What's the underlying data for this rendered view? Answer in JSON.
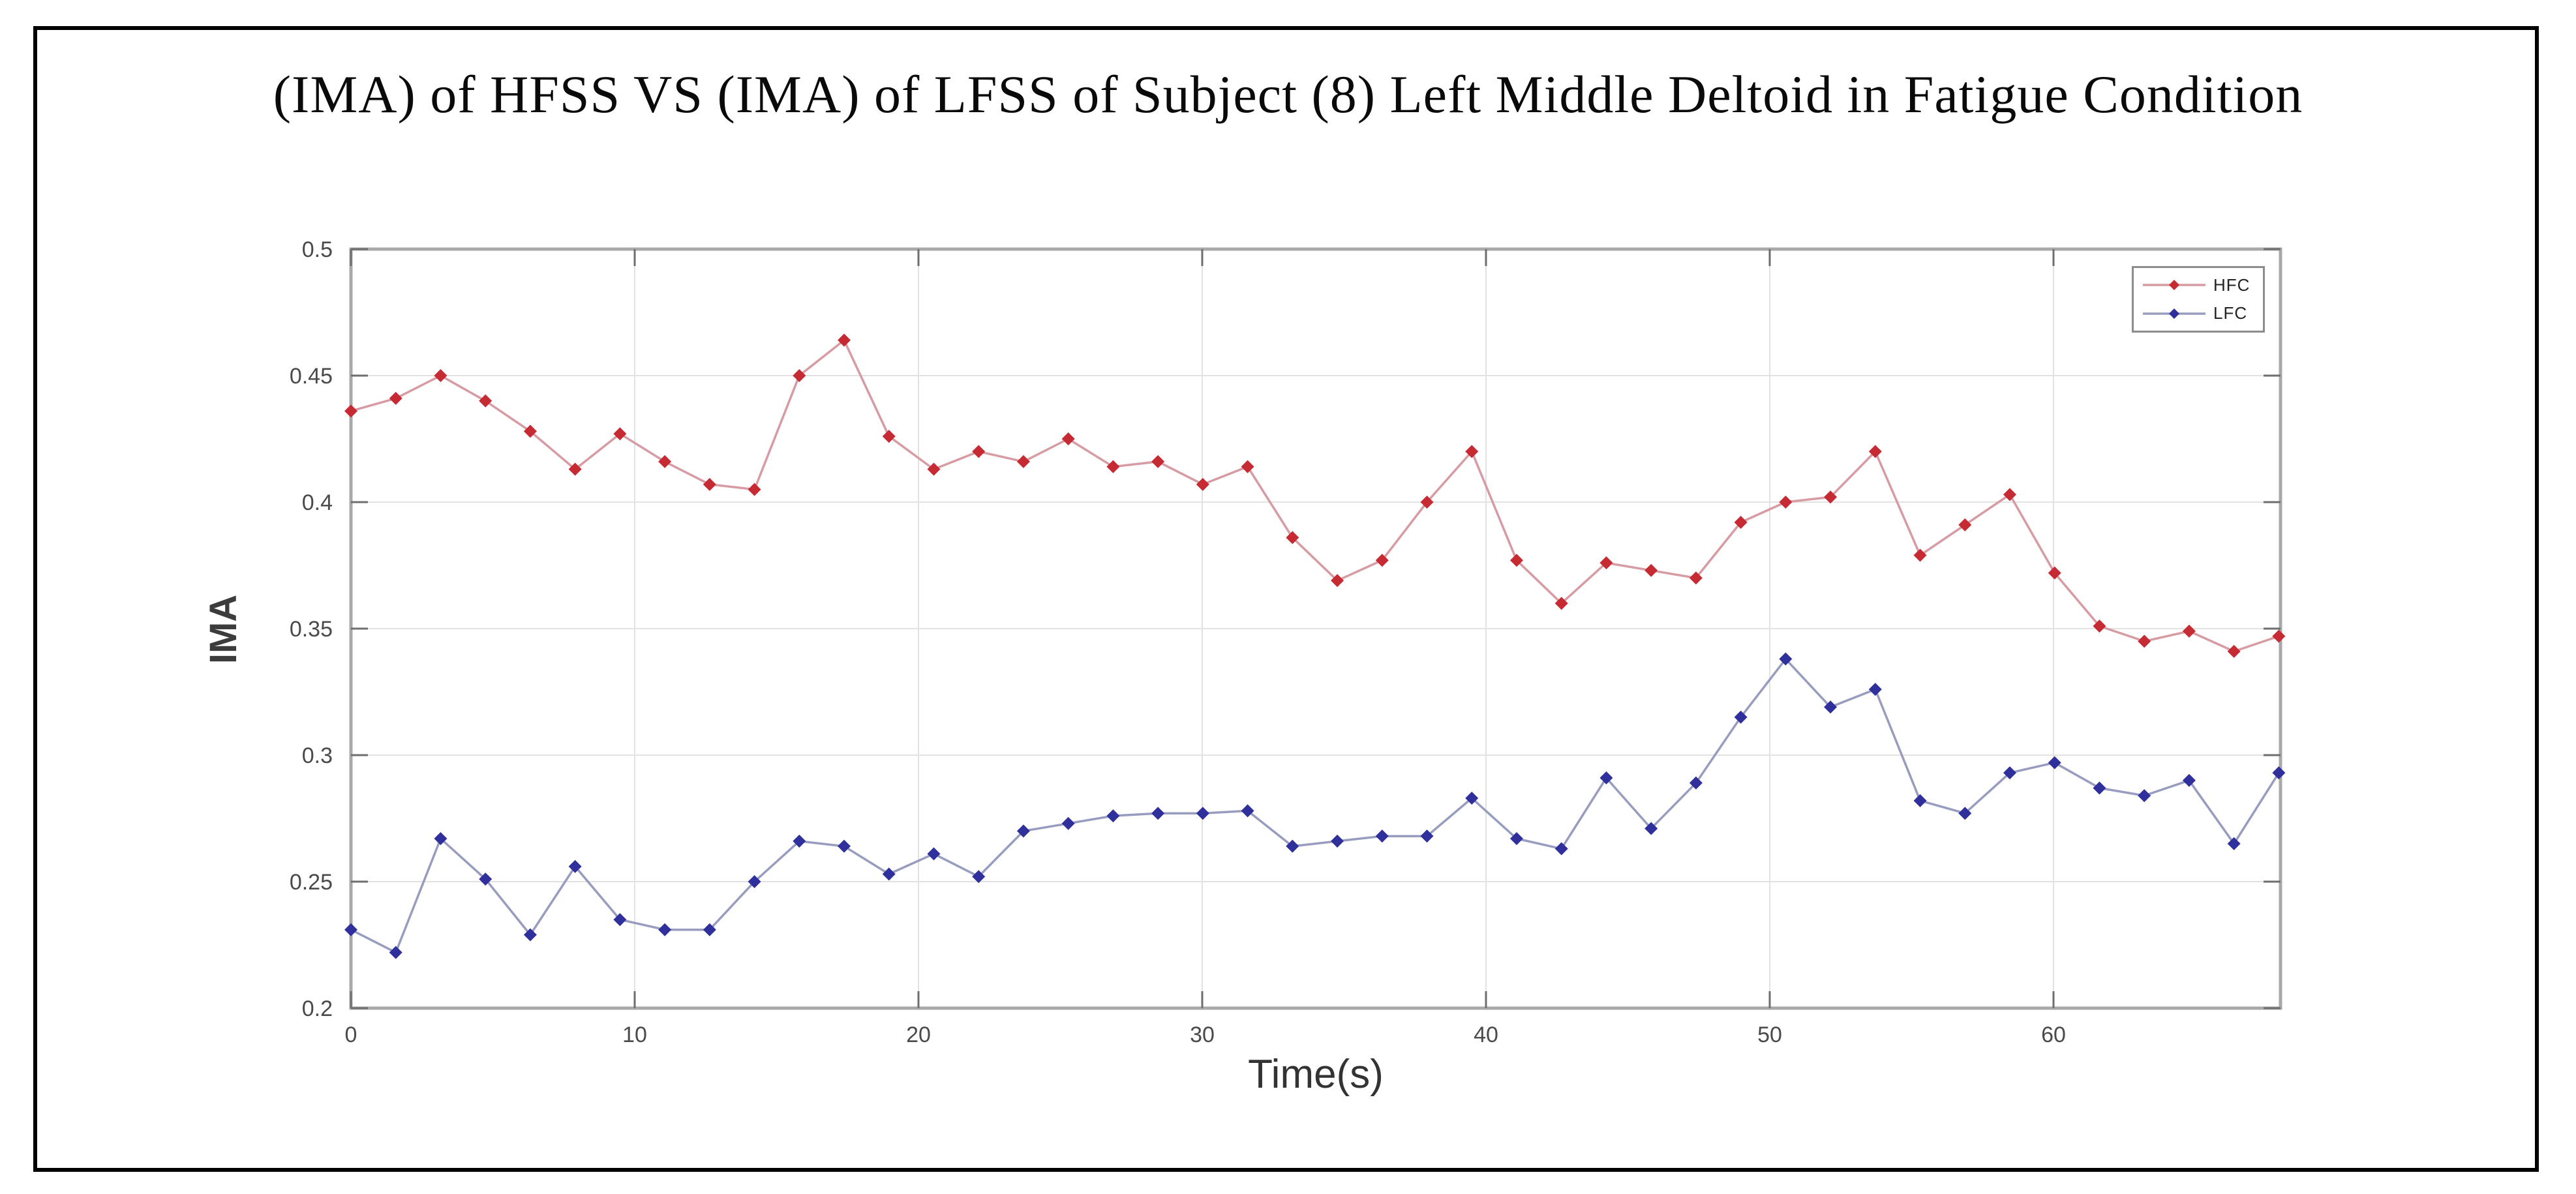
{
  "figure": {
    "title": "(IMA) of HFSS VS (IMA) of LFSS of Subject (8) Left Middle Deltoid in Fatigue Condition"
  },
  "chart_data": {
    "type": "line",
    "title": "(IMA) of HFSS VS (IMA) of LFSS of Subject (8) Left Middle Deltoid in Fatigue Condition",
    "xlabel": "Time(s)",
    "ylabel": "IMA",
    "xlim": [
      0,
      68
    ],
    "ylim": [
      0.2,
      0.5
    ],
    "grid": true,
    "legend_position": "top-right",
    "x_ticks": [
      0,
      10,
      20,
      30,
      40,
      50,
      60
    ],
    "x_tick_labels": [
      "0",
      "10",
      "20",
      "30",
      "40",
      "50",
      "60"
    ],
    "y_ticks": [
      0.2,
      0.25,
      0.3,
      0.35,
      0.4,
      0.45,
      0.5
    ],
    "y_tick_labels": [
      "0.2",
      "0.25",
      "0.3",
      "0.35",
      "0.4",
      "0.45",
      "0.5"
    ],
    "x": [
      0,
      1.58,
      3.16,
      4.74,
      6.32,
      7.9,
      9.48,
      11.06,
      12.64,
      14.22,
      15.8,
      17.38,
      18.96,
      20.54,
      22.12,
      23.7,
      25.28,
      26.86,
      28.44,
      30.02,
      31.6,
      33.18,
      34.76,
      36.34,
      37.92,
      39.5,
      41.08,
      42.66,
      44.24,
      45.82,
      47.4,
      48.98,
      50.56,
      52.14,
      53.72,
      55.3,
      56.88,
      58.46,
      60.04,
      61.62,
      63.2,
      64.78,
      66.36,
      67.94
    ],
    "series": [
      {
        "name": "HFC",
        "marker_color": "#c62a32",
        "line_color": "#d79ba3",
        "values": [
          0.436,
          0.441,
          0.45,
          0.44,
          0.428,
          0.413,
          0.427,
          0.416,
          0.407,
          0.405,
          0.45,
          0.464,
          0.426,
          0.413,
          0.42,
          0.416,
          0.425,
          0.414,
          0.416,
          0.407,
          0.414,
          0.386,
          0.369,
          0.377,
          0.4,
          0.42,
          0.377,
          0.36,
          0.376,
          0.373,
          0.37,
          0.392,
          0.4,
          0.402,
          0.42,
          0.379,
          0.391,
          0.403,
          0.372,
          0.351,
          0.345,
          0.349,
          0.341,
          0.347
        ]
      },
      {
        "name": "LFC",
        "marker_color": "#30309c",
        "line_color": "#989dc0",
        "values": [
          0.231,
          0.222,
          0.267,
          0.251,
          0.229,
          0.256,
          0.235,
          0.231,
          0.231,
          0.25,
          0.266,
          0.264,
          0.253,
          0.261,
          0.252,
          0.27,
          0.273,
          0.276,
          0.277,
          0.277,
          0.278,
          0.264,
          0.266,
          0.268,
          0.268,
          0.283,
          0.267,
          0.263,
          0.291,
          0.271,
          0.289,
          0.315,
          0.338,
          0.319,
          0.326,
          0.282,
          0.277,
          0.293,
          0.297,
          0.287,
          0.284,
          0.29,
          0.265,
          0.293
        ]
      }
    ],
    "style": {
      "grid_color": "#e2e2e2",
      "axis_box_color": "#a9a9a9",
      "tick_color": "#6e6e6e",
      "tick_label_color": "#4a4a4a"
    }
  }
}
